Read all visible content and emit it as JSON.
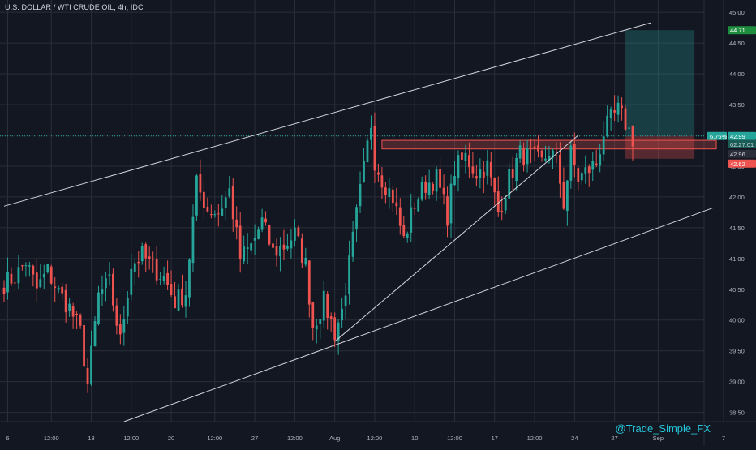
{
  "header": {
    "title": "U.S. DOLLAR / WTI CRUDE OIL, 4h, IDC"
  },
  "watermark": "@Trade_Simple_FX",
  "colors": {
    "background": "#131722",
    "grid": "#2a2e39",
    "up": "#26a69a",
    "down": "#ef5350",
    "trendline": "#d1d4dc",
    "zone": "#ef5350",
    "target": "#26a69a",
    "stop": "#ef5350",
    "current_price": "#26a69a"
  },
  "chart_data": {
    "type": "candlestick",
    "title": "U.S. DOLLAR / WTI CRUDE OIL, 4h, IDC",
    "grid": true,
    "legend": "none",
    "ylim": [
      38.35,
      45.2
    ],
    "y_ticks": [
      38.5,
      39.0,
      39.5,
      40.0,
      40.5,
      41.0,
      41.5,
      42.0,
      42.5,
      43.0,
      43.5,
      44.0,
      44.5,
      45.0
    ],
    "y_tick_labels": [
      "38.50",
      "39.00",
      "39.50",
      "40.00",
      "40.50",
      "41.00",
      "41.50",
      "42.00",
      "42.50",
      "43.00",
      "43.50",
      "44.00",
      "44.50",
      "45.00"
    ],
    "x_ticks": [
      {
        "index": 1,
        "label": "6"
      },
      {
        "index": 13,
        "label": "12:00"
      },
      {
        "index": 24,
        "label": "13"
      },
      {
        "index": 35,
        "label": "12:00"
      },
      {
        "index": 46,
        "label": "20"
      },
      {
        "index": 58,
        "label": "12:00"
      },
      {
        "index": 69,
        "label": "27"
      },
      {
        "index": 80,
        "label": "12:00"
      },
      {
        "index": 91,
        "label": "Aug"
      },
      {
        "index": 102,
        "label": "12:00"
      },
      {
        "index": 113,
        "label": "10"
      },
      {
        "index": 124,
        "label": "12:00"
      },
      {
        "index": 135,
        "label": "17"
      },
      {
        "index": 146,
        "label": "12:00"
      },
      {
        "index": 157,
        "label": "24"
      },
      {
        "index": 168,
        "label": "27"
      },
      {
        "index": 180,
        "label": "Sep"
      },
      {
        "index": 198,
        "label": "7"
      }
    ],
    "x_range_index": [
      0,
      198
    ],
    "anchors": [
      [
        0,
        40.6
      ],
      [
        3,
        40.7
      ],
      [
        6,
        40.95
      ],
      [
        9,
        40.5
      ],
      [
        12,
        40.8
      ],
      [
        15,
        40.45
      ],
      [
        18,
        40.2
      ],
      [
        21,
        39.8
      ],
      [
        23,
        38.95
      ],
      [
        26,
        40.4
      ],
      [
        29,
        40.6
      ],
      [
        32,
        39.65
      ],
      [
        35,
        40.9
      ],
      [
        38,
        41.05
      ],
      [
        41,
        40.85
      ],
      [
        44,
        40.7
      ],
      [
        47,
        40.3
      ],
      [
        50,
        40.45
      ],
      [
        53,
        42.2
      ],
      [
        56,
        41.8
      ],
      [
        59,
        41.75
      ],
      [
        62,
        42.1
      ],
      [
        65,
        41.0
      ],
      [
        68,
        41.2
      ],
      [
        71,
        41.6
      ],
      [
        74,
        41.1
      ],
      [
        77,
        41.2
      ],
      [
        80,
        41.4
      ],
      [
        83,
        40.9
      ],
      [
        85,
        39.9
      ],
      [
        88,
        40.3
      ],
      [
        91,
        39.8
      ],
      [
        93,
        40.15
      ],
      [
        95,
        40.9
      ],
      [
        97,
        41.7
      ],
      [
        99,
        42.45
      ],
      [
        101,
        43.2
      ],
      [
        102,
        42.6
      ],
      [
        104,
        42.3
      ],
      [
        107,
        42.0
      ],
      [
        110,
        41.3
      ],
      [
        113,
        41.9
      ],
      [
        116,
        42.2
      ],
      [
        119,
        42.3
      ],
      [
        122,
        41.7
      ],
      [
        124,
        42.45
      ],
      [
        127,
        42.65
      ],
      [
        130,
        42.4
      ],
      [
        133,
        42.5
      ],
      [
        136,
        41.75
      ],
      [
        139,
        42.3
      ],
      [
        142,
        42.7
      ],
      [
        145,
        42.65
      ],
      [
        148,
        42.55
      ],
      [
        150,
        42.75
      ],
      [
        152,
        42.6
      ],
      [
        154,
        41.9
      ],
      [
        156,
        42.7
      ],
      [
        158,
        42.3
      ],
      [
        160,
        42.4
      ],
      [
        163,
        42.55
      ],
      [
        165,
        43.05
      ],
      [
        167,
        43.25
      ],
      [
        169,
        43.4
      ],
      [
        171,
        43.2
      ],
      [
        173,
        42.95
      ]
    ],
    "annotations": {
      "channel_upper": [
        [
          0,
          41.85
        ],
        [
          178,
          44.83
        ]
      ],
      "channel_lower": [
        [
          33,
          38.35
        ],
        [
          195,
          41.82
        ]
      ],
      "rising_support": [
        [
          91,
          39.65
        ],
        [
          158,
          43.0
        ]
      ],
      "resistance_zone": {
        "x_start": 104,
        "x_end": 196,
        "y_low": 42.78,
        "y_high": 42.92
      },
      "target_box": {
        "x_start": 171,
        "x_end": 190,
        "y_low": 42.99,
        "y_high": 44.71
      },
      "stop_box": {
        "x_start": 171,
        "x_end": 190,
        "y_low": 42.62,
        "y_high": 42.99
      },
      "current_price_line": 42.99
    },
    "price_labels": [
      {
        "text": "44.71",
        "price": 44.71,
        "kind": "target"
      },
      {
        "text": "6.76%",
        "price": 42.99,
        "kind": "percent"
      },
      {
        "text": "42.99",
        "price": 42.99,
        "kind": "current"
      },
      {
        "text": "02:27:01",
        "price": 42.99,
        "kind": "timer"
      },
      {
        "text": "42.96",
        "price": 42.96,
        "kind": "entry"
      },
      {
        "text": "42.62",
        "price": 42.62,
        "kind": "stop"
      }
    ]
  }
}
